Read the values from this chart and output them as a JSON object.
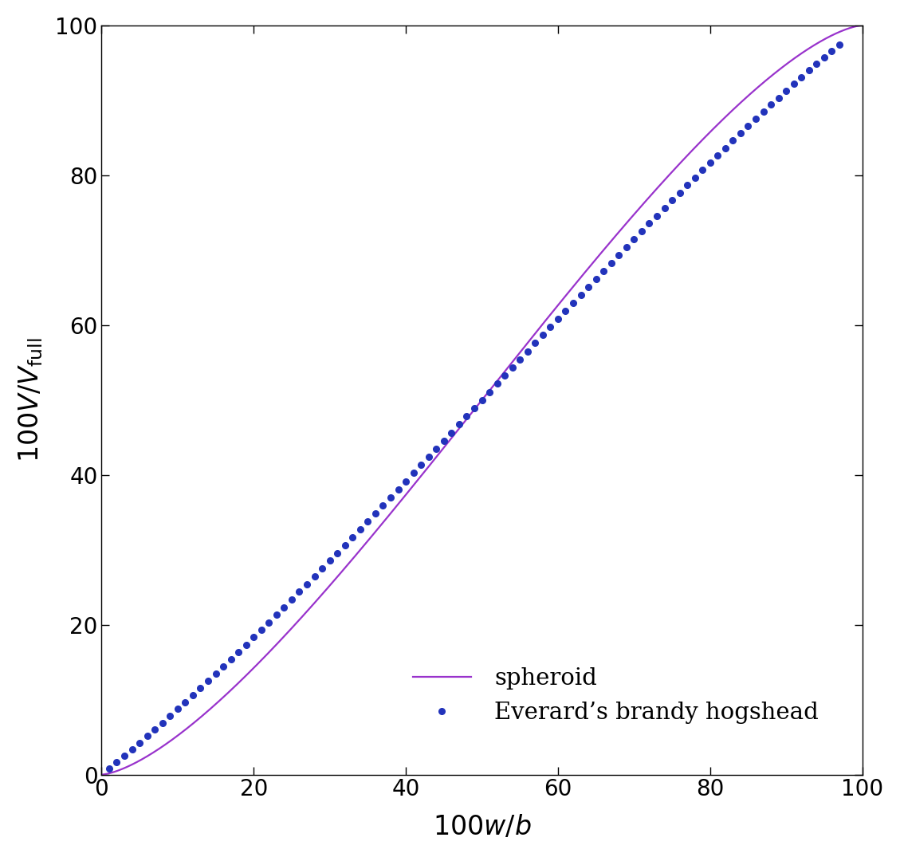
{
  "xlim": [
    0,
    100
  ],
  "ylim": [
    0,
    100
  ],
  "xticks": [
    0,
    20,
    40,
    60,
    80,
    100
  ],
  "yticks": [
    0,
    20,
    40,
    60,
    80,
    100
  ],
  "spheroid_color": "#9933CC",
  "dots_color": "#2233BB",
  "legend_spheroid": "spheroid",
  "legend_dots": "Everard’s brandy hogshead",
  "figsize": [
    11.29,
    10.75
  ],
  "dpi": 100,
  "font_size": 24,
  "legend_font_size": 21,
  "tick_font_size": 20,
  "dot_size": 5.5,
  "line_width": 1.6,
  "barrel_ratio_sq": 0.76,
  "n_sphere_pts": 1000,
  "n_hogs_pts": 97
}
